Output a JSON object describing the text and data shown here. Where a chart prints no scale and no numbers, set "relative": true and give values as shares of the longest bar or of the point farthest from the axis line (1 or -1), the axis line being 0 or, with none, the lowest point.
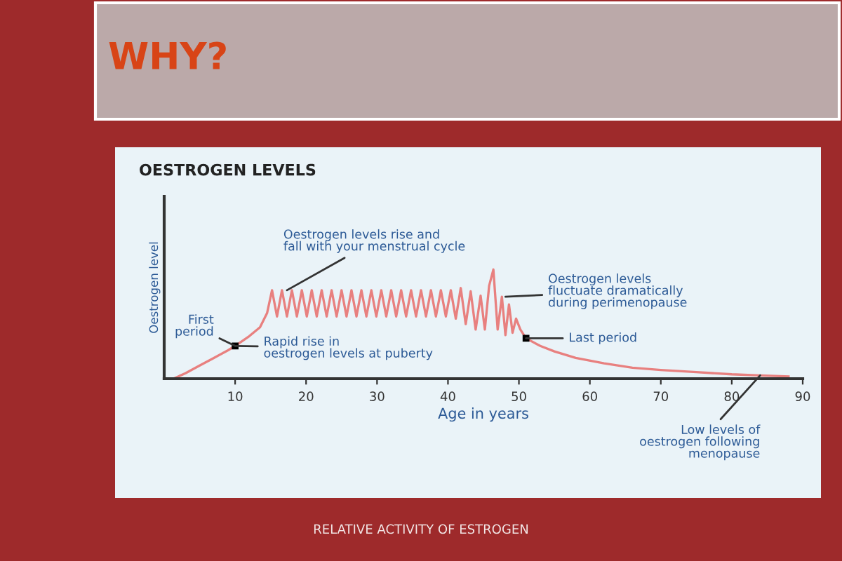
{
  "chart_data": {
    "type": "line",
    "relative": true,
    "title": "OESTROGEN LEVELS",
    "xlabel": "Age in years",
    "ylabel": "Oestrogen level",
    "xlim": [
      0,
      90
    ],
    "xticks": [
      10,
      20,
      30,
      40,
      50,
      60,
      70,
      80,
      90
    ],
    "grid": false,
    "legend": false,
    "marker": "none",
    "line_style": "solid",
    "series": [
      {
        "color": "#e8807f",
        "x": [
          1.3,
          3,
          5,
          7,
          9,
          10,
          12,
          13.5,
          14.5,
          15.2,
          15.9,
          16.6,
          17.3,
          18,
          18.7,
          19.4,
          20.1,
          20.8,
          21.5,
          22.2,
          22.9,
          23.6,
          24.3,
          25,
          25.7,
          26.4,
          27.1,
          27.8,
          28.5,
          29.2,
          29.9,
          30.6,
          31.3,
          32,
          32.7,
          33.4,
          34.1,
          34.8,
          35.5,
          36.2,
          36.9,
          37.6,
          38.3,
          39,
          39.7,
          40.4,
          41.1,
          41.8,
          42.5,
          43.2,
          43.9,
          44.6,
          45.2,
          45.8,
          46.4,
          47,
          47.6,
          48.1,
          48.6,
          49.1,
          49.6,
          50.2,
          51,
          53,
          55,
          58,
          62,
          66,
          70,
          75,
          80,
          84,
          88
        ],
        "values": [
          0,
          0.05,
          0.12,
          0.19,
          0.26,
          0.3,
          0.39,
          0.47,
          0.6,
          0.81,
          0.57,
          0.81,
          0.57,
          0.81,
          0.57,
          0.81,
          0.57,
          0.81,
          0.57,
          0.81,
          0.57,
          0.81,
          0.57,
          0.81,
          0.57,
          0.81,
          0.57,
          0.81,
          0.57,
          0.81,
          0.57,
          0.81,
          0.57,
          0.81,
          0.57,
          0.81,
          0.57,
          0.81,
          0.57,
          0.81,
          0.57,
          0.81,
          0.57,
          0.81,
          0.57,
          0.81,
          0.55,
          0.83,
          0.5,
          0.8,
          0.45,
          0.76,
          0.45,
          0.85,
          1.0,
          0.45,
          0.75,
          0.4,
          0.68,
          0.42,
          0.55,
          0.45,
          0.37,
          0.3,
          0.25,
          0.19,
          0.14,
          0.1,
          0.08,
          0.06,
          0.04,
          0.03,
          0.02
        ]
      }
    ],
    "annotations": [
      "WHY?",
      {
        "text": "Oestrogen levels rise and\nfall with your menstrual cycle",
        "x": 17.3,
        "y": 0.81
      },
      {
        "text": "First\nperiod",
        "x": 10,
        "y": 0.3
      },
      {
        "text": "Rapid rise in\noestrogen levels at puberty",
        "x": 10,
        "y": 0.3
      },
      {
        "text": "Oestrogen levels\nfluctuate dramatically\nduring perimenopause",
        "x": 48.1,
        "y": 0.75
      },
      {
        "text": "Last period",
        "x": 51,
        "y": 0.37
      },
      {
        "text": "Low levels of\noestrogen following\nmenopause",
        "x": 84,
        "y": 0.03
      },
      "RELATIVE ACTIVITY OF ESTROGEN"
    ]
  }
}
